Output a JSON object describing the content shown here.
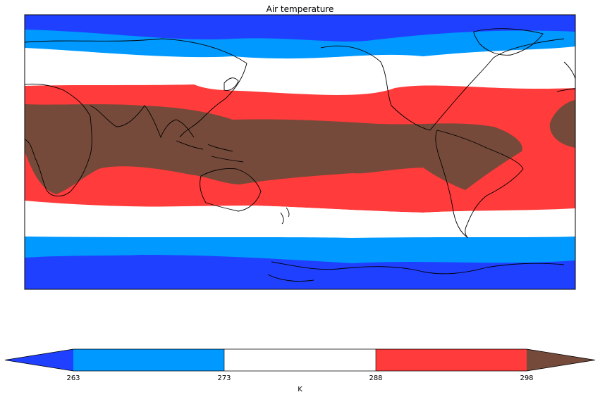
{
  "figure": {
    "title": "Air temperature"
  },
  "map": {
    "projection": "PlateCarree",
    "central_longitude": 180,
    "lon_range": [
      0,
      360
    ],
    "lat_range": [
      -90,
      90
    ],
    "coastlines": true,
    "field": "air temperature",
    "units": "K"
  },
  "colorbar": {
    "label": "K",
    "orientation": "horizontal",
    "extend": "both",
    "levels": [
      263,
      273,
      288,
      298
    ],
    "tick_labels": [
      "263",
      "273",
      "288",
      "298"
    ],
    "colors": {
      "below": "#2040ff",
      "263-273": "#0099ff",
      "273-288": "#ffffff",
      "288-298": "#ff3b3b",
      "above": "#754a3a"
    }
  }
}
